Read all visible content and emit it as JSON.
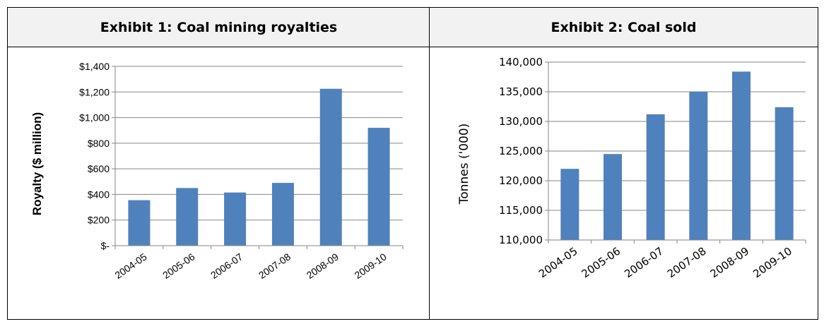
{
  "chart_data": [
    {
      "type": "bar",
      "title": "Exhibit 1: Coal mining royalties",
      "xlabel": "",
      "ylabel": "Royalty ($ million)",
      "categories": [
        "2004-05",
        "2005-06",
        "2006-07",
        "2007-08",
        "2008-09",
        "2009-10"
      ],
      "values": [
        355,
        450,
        415,
        490,
        1225,
        920
      ],
      "ylim": [
        0,
        1400
      ],
      "yticks": [
        0,
        200,
        400,
        600,
        800,
        1000,
        1200,
        1400
      ],
      "ytick_labels": [
        "$-",
        "$200",
        "$400",
        "$600",
        "$800",
        "$1,000",
        "$1,200",
        "$1,400"
      ],
      "grid": true,
      "color": "#4f81bd"
    },
    {
      "type": "bar",
      "title": "Exhibit 2: Coal sold",
      "xlabel": "",
      "ylabel": "Tonnes ('000)",
      "categories": [
        "2004-05",
        "2005-06",
        "2006-07",
        "2007-08",
        "2008-09",
        "2009-10"
      ],
      "values": [
        122000,
        124500,
        131200,
        135000,
        138400,
        132400
      ],
      "ylim": [
        110000,
        140000
      ],
      "yticks": [
        110000,
        115000,
        120000,
        125000,
        130000,
        135000,
        140000
      ],
      "ytick_labels": [
        "110,000",
        "115,000",
        "120,000",
        "125,000",
        "130,000",
        "135,000",
        "140,000"
      ],
      "grid": true,
      "color": "#4f81bd"
    }
  ]
}
